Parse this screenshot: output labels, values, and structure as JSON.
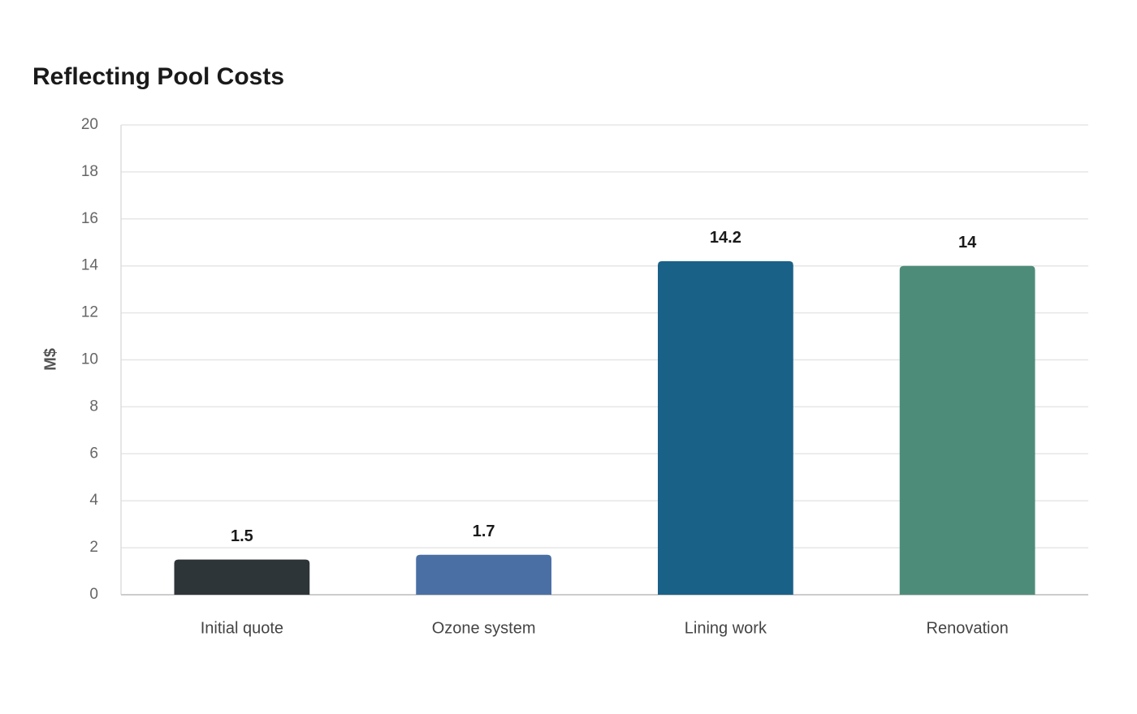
{
  "chart_data": {
    "type": "bar",
    "title": "Reflecting Pool Costs",
    "y_label": "M$",
    "categories": [
      "Initial quote",
      "Ozone system",
      "Lining work",
      "Renovation"
    ],
    "values": [
      1.5,
      1.7,
      14.2,
      14
    ],
    "colors": [
      "#2e3538",
      "#4a6fa5",
      "#1a6188",
      "#4e8c7a"
    ],
    "ylim": [
      0,
      20
    ],
    "yticks": [
      0,
      2,
      4,
      6,
      8,
      10,
      12,
      14,
      16,
      18,
      20
    ],
    "grid": true
  }
}
